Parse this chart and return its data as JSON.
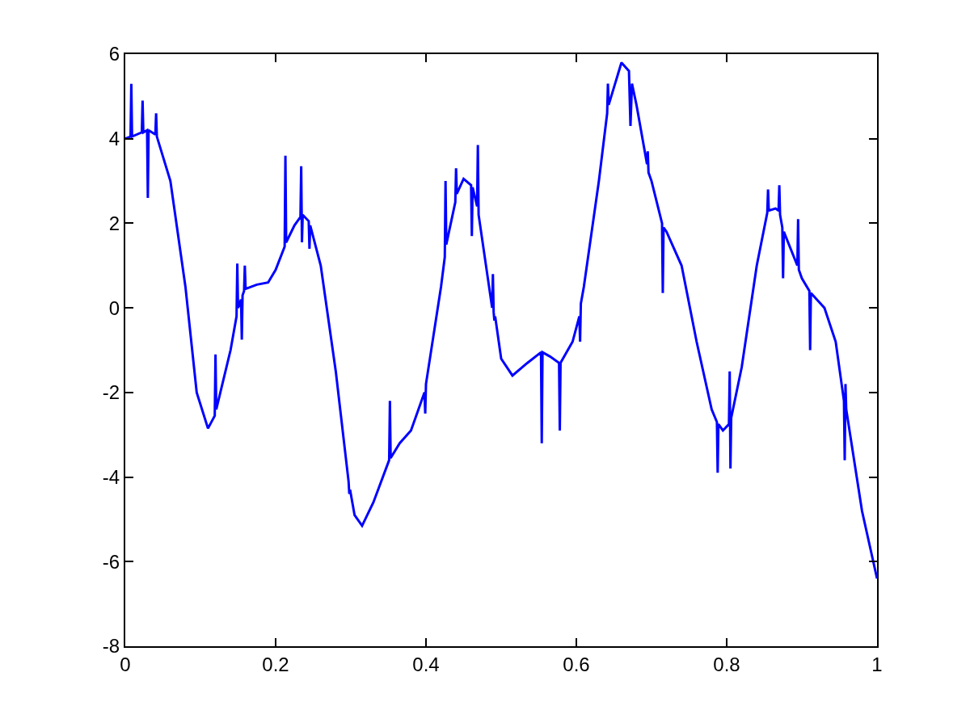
{
  "chart_data": {
    "type": "line",
    "x": [
      0,
      0.007,
      0.008,
      0.009,
      0.022,
      0.023,
      0.024,
      0.029,
      0.03,
      0.031,
      0.04,
      0.041,
      0.042,
      0.06,
      0.08,
      0.095,
      0.11,
      0.119,
      0.12,
      0.121,
      0.14,
      0.148,
      0.149,
      0.15,
      0.154,
      0.155,
      0.156,
      0.158,
      0.159,
      0.16,
      0.175,
      0.19,
      0.2,
      0.212,
      0.213,
      0.214,
      0.225,
      0.233,
      0.234,
      0.235,
      0.236,
      0.244,
      0.245,
      0.246,
      0.26,
      0.28,
      0.297,
      0.298,
      0.299,
      0.305,
      0.315,
      0.33,
      0.351,
      0.352,
      0.353,
      0.365,
      0.38,
      0.398,
      0.399,
      0.4,
      0.42,
      0.425,
      0.426,
      0.427,
      0.439,
      0.44,
      0.441,
      0.45,
      0.46,
      0.461,
      0.462,
      0.468,
      0.469,
      0.47,
      0.488,
      0.489,
      0.49,
      0.491,
      0.492,
      0.5,
      0.515,
      0.535,
      0.553,
      0.554,
      0.555,
      0.565,
      0.577,
      0.578,
      0.579,
      0.595,
      0.604,
      0.605,
      0.606,
      0.61,
      0.63,
      0.641,
      0.642,
      0.643,
      0.66,
      0.67,
      0.672,
      0.674,
      0.68,
      0.694,
      0.695,
      0.696,
      0.7,
      0.714,
      0.715,
      0.716,
      0.72,
      0.74,
      0.76,
      0.78,
      0.787,
      0.788,
      0.789,
      0.795,
      0.803,
      0.804,
      0.805,
      0.806,
      0.82,
      0.84,
      0.854,
      0.855,
      0.856,
      0.865,
      0.869,
      0.87,
      0.871,
      0.874,
      0.875,
      0.876,
      0.894,
      0.895,
      0.896,
      0.9,
      0.91,
      0.911,
      0.912,
      0.93,
      0.945,
      0.956,
      0.957,
      0.958,
      0.959,
      0.98,
      0.995,
      1.0
    ],
    "series": [
      {
        "color": "#0000ff",
        "values": [
          4.0,
          4.05,
          5.3,
          4.05,
          4.15,
          4.9,
          4.15,
          4.2,
          2.6,
          4.2,
          4.1,
          4.6,
          4.05,
          3.0,
          0.5,
          -2.0,
          -2.85,
          -2.55,
          -1.1,
          -2.4,
          -1.0,
          -0.2,
          1.05,
          0.0,
          0.2,
          -0.75,
          0.3,
          0.4,
          1.0,
          0.45,
          0.55,
          0.6,
          0.9,
          1.45,
          3.6,
          1.55,
          1.95,
          2.15,
          3.35,
          1.55,
          2.2,
          2.05,
          1.4,
          1.95,
          1.0,
          -1.5,
          -4.1,
          -4.4,
          -4.3,
          -4.9,
          -5.15,
          -4.6,
          -3.6,
          -2.2,
          -3.55,
          -3.2,
          -2.9,
          -2.0,
          -2.5,
          -1.8,
          0.5,
          1.2,
          3.0,
          1.5,
          2.5,
          3.3,
          2.7,
          3.05,
          2.9,
          1.7,
          2.85,
          2.4,
          3.85,
          2.2,
          0.0,
          0.8,
          -0.1,
          -0.3,
          -0.2,
          -1.2,
          -1.6,
          -1.3,
          -1.05,
          -3.2,
          -1.05,
          -1.15,
          -1.3,
          -2.9,
          -1.3,
          -0.8,
          -0.2,
          -0.8,
          0.1,
          0.5,
          3.0,
          4.6,
          5.3,
          4.8,
          5.8,
          5.6,
          4.3,
          5.3,
          4.8,
          3.4,
          3.7,
          3.2,
          3.0,
          2.0,
          0.35,
          1.9,
          1.8,
          1.0,
          -0.8,
          -2.4,
          -2.7,
          -3.9,
          -2.75,
          -2.9,
          -2.75,
          -1.5,
          -3.8,
          -2.6,
          -1.4,
          1.0,
          2.25,
          2.8,
          2.3,
          2.35,
          2.3,
          2.9,
          2.2,
          1.9,
          0.7,
          1.8,
          1.0,
          2.1,
          0.9,
          0.7,
          0.4,
          -1.0,
          0.35,
          0.0,
          -0.8,
          -2.2,
          -3.6,
          -1.8,
          -2.4,
          -4.8,
          -6.0,
          -6.4
        ]
      }
    ],
    "xlim": [
      0,
      1
    ],
    "xticks": [
      0,
      0.2,
      0.4,
      0.6,
      0.8,
      1
    ],
    "ylim": [
      -8,
      6
    ],
    "yticks": [
      -8,
      -6,
      -4,
      -2,
      0,
      2,
      4,
      6
    ],
    "marker": "none",
    "line_style": "solid"
  }
}
